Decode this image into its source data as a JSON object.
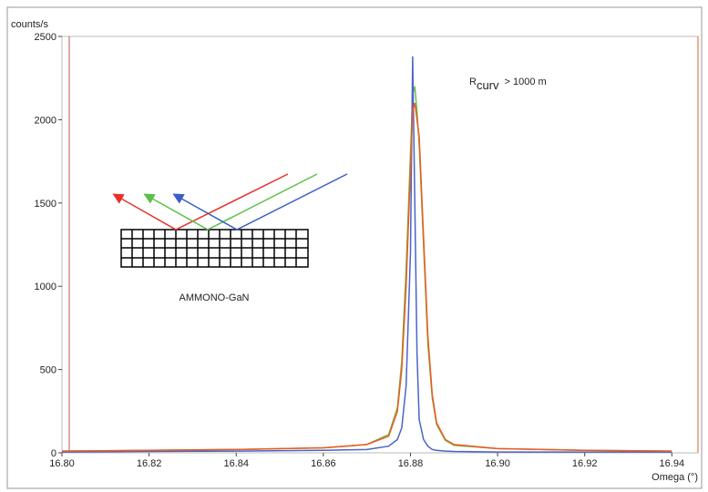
{
  "chart_data": {
    "type": "line",
    "y_label": "counts/s",
    "x_label": "Omega (°)",
    "curvature_label": {
      "base": "R",
      "subscript": "curv",
      "rest": "> 1000 m"
    },
    "sample_label": "AMMONO-GaN",
    "x": [
      16.8,
      16.82,
      16.84,
      16.86,
      16.87,
      16.875,
      16.877,
      16.878,
      16.879,
      16.88,
      16.8805,
      16.881,
      16.8815,
      16.882,
      16.883,
      16.884,
      16.885,
      16.886,
      16.888,
      16.89,
      16.9,
      16.92,
      16.94
    ],
    "series": [
      {
        "color": "#6cbf4a",
        "values": [
          10,
          15,
          20,
          30,
          50,
          110,
          270,
          550,
          1100,
          1800,
          2150,
          2200,
          2050,
          1850,
          1250,
          650,
          330,
          170,
          75,
          45,
          25,
          15,
          10
        ]
      },
      {
        "color": "#4a64c8",
        "values": [
          5,
          8,
          10,
          15,
          20,
          40,
          80,
          150,
          400,
          1200,
          2380,
          1500,
          600,
          200,
          80,
          40,
          20,
          15,
          10,
          8,
          5,
          5,
          5
        ]
      },
      {
        "color": "#ee5a22",
        "values": [
          10,
          15,
          20,
          30,
          50,
          100,
          250,
          500,
          1000,
          1700,
          2050,
          2100,
          2000,
          1900,
          1300,
          700,
          350,
          180,
          80,
          50,
          25,
          15,
          10
        ]
      }
    ],
    "xlim": [
      16.8,
      16.946
    ],
    "ylim": [
      0,
      2500
    ],
    "xticks": [
      {
        "value": 16.8,
        "label": "16.80"
      },
      16.82,
      16.84,
      16.86,
      16.88,
      {
        "value": 16.9,
        "label": "16.90"
      },
      16.92,
      16.94
    ],
    "yticks": [
      0,
      500,
      1000,
      1500,
      2000,
      2500
    ]
  }
}
